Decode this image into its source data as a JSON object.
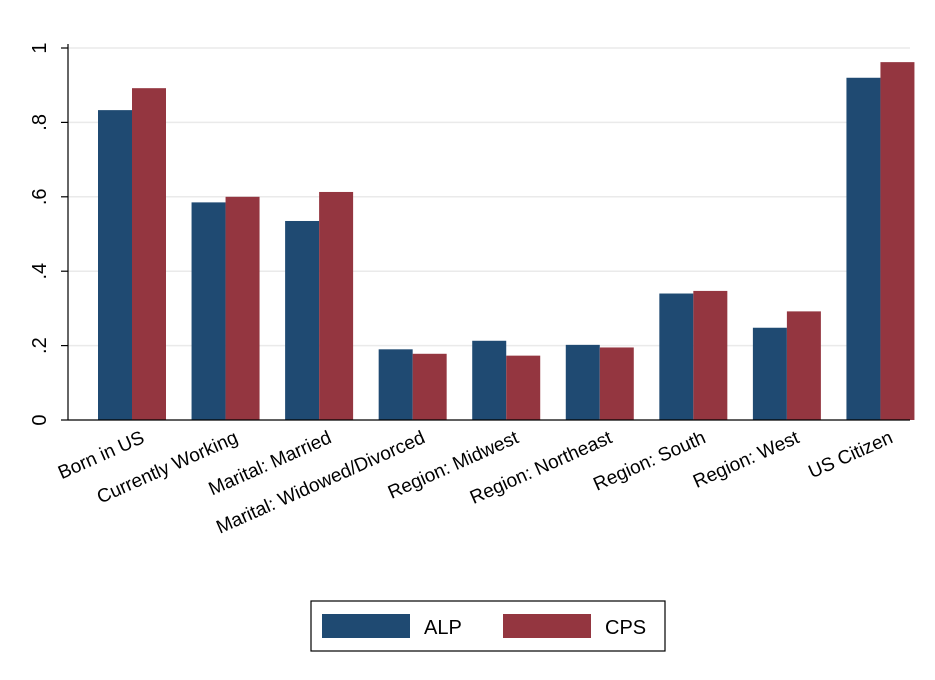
{
  "chart_data": {
    "type": "bar",
    "categories": [
      "Born in US",
      "Currently Working",
      "Marital: Married",
      "Marital: Widowed/Divorced",
      "Region: Midwest",
      "Region: Northeast",
      "Region: South",
      "Region: West",
      "US Citizen"
    ],
    "series": [
      {
        "name": "ALP",
        "color": "#1f4a72",
        "values": [
          0.833,
          0.585,
          0.535,
          0.19,
          0.213,
          0.202,
          0.34,
          0.248,
          0.92
        ]
      },
      {
        "name": "CPS",
        "color": "#943640",
        "values": [
          0.892,
          0.6,
          0.613,
          0.178,
          0.173,
          0.195,
          0.347,
          0.292,
          0.962
        ]
      }
    ],
    "yticks": [
      0,
      0.2,
      0.4,
      0.6,
      0.8,
      1
    ],
    "ytick_labels": [
      "0",
      ".2",
      ".4",
      ".6",
      ".8",
      "1"
    ],
    "ylim": [
      0,
      1
    ],
    "grid": true,
    "legend_position": "bottom",
    "gridline_color": "#eaeaea"
  }
}
